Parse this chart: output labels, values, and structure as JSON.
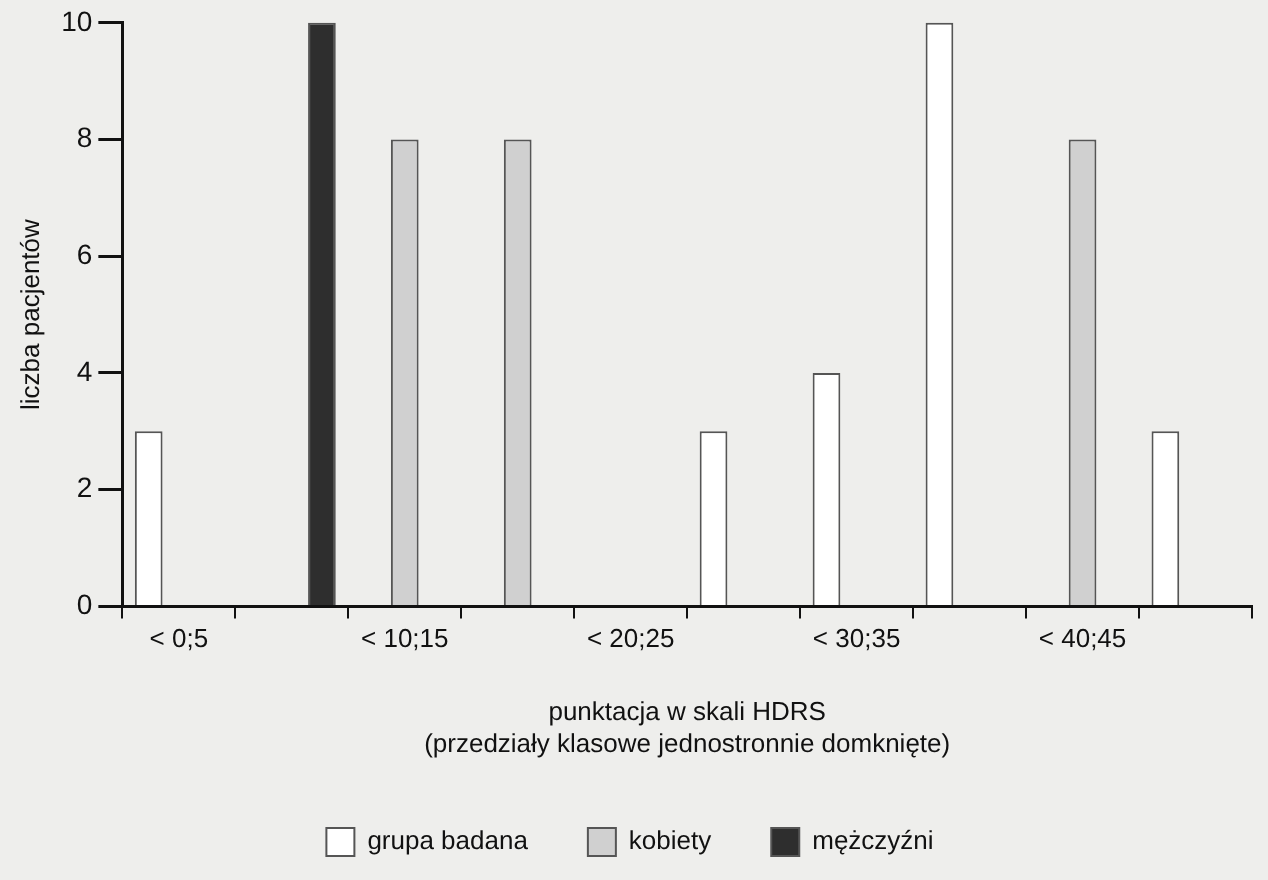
{
  "chart_data": {
    "type": "bar",
    "xlabel": "punktacja w skali HDRS\n(przedziały klasowe jednostronnie domknięte)",
    "ylabel": "liczba pacjentów",
    "categories": [
      "< 0;5",
      null,
      "< 10;15",
      null,
      "< 20;25",
      null,
      "< 30;35",
      null,
      "< 40;45",
      null
    ],
    "series": [
      {
        "name": "grupa badana",
        "color": "#ffffff",
        "values": [
          3,
          null,
          null,
          null,
          0,
          3,
          4,
          10,
          null,
          3
        ]
      },
      {
        "name": "kobiety",
        "color": "#d0d0d0",
        "values": [
          null,
          null,
          8,
          8,
          null,
          null,
          null,
          null,
          8,
          null
        ]
      },
      {
        "name": "mężczyźni",
        "color": "#2e2e2e",
        "values": [
          null,
          10,
          null,
          null,
          null,
          null,
          null,
          null,
          null,
          null
        ]
      }
    ],
    "ylim": [
      0,
      10
    ],
    "yticks": [
      0,
      2,
      4,
      6,
      8,
      10
    ],
    "grid": false,
    "legend": "bottom"
  }
}
